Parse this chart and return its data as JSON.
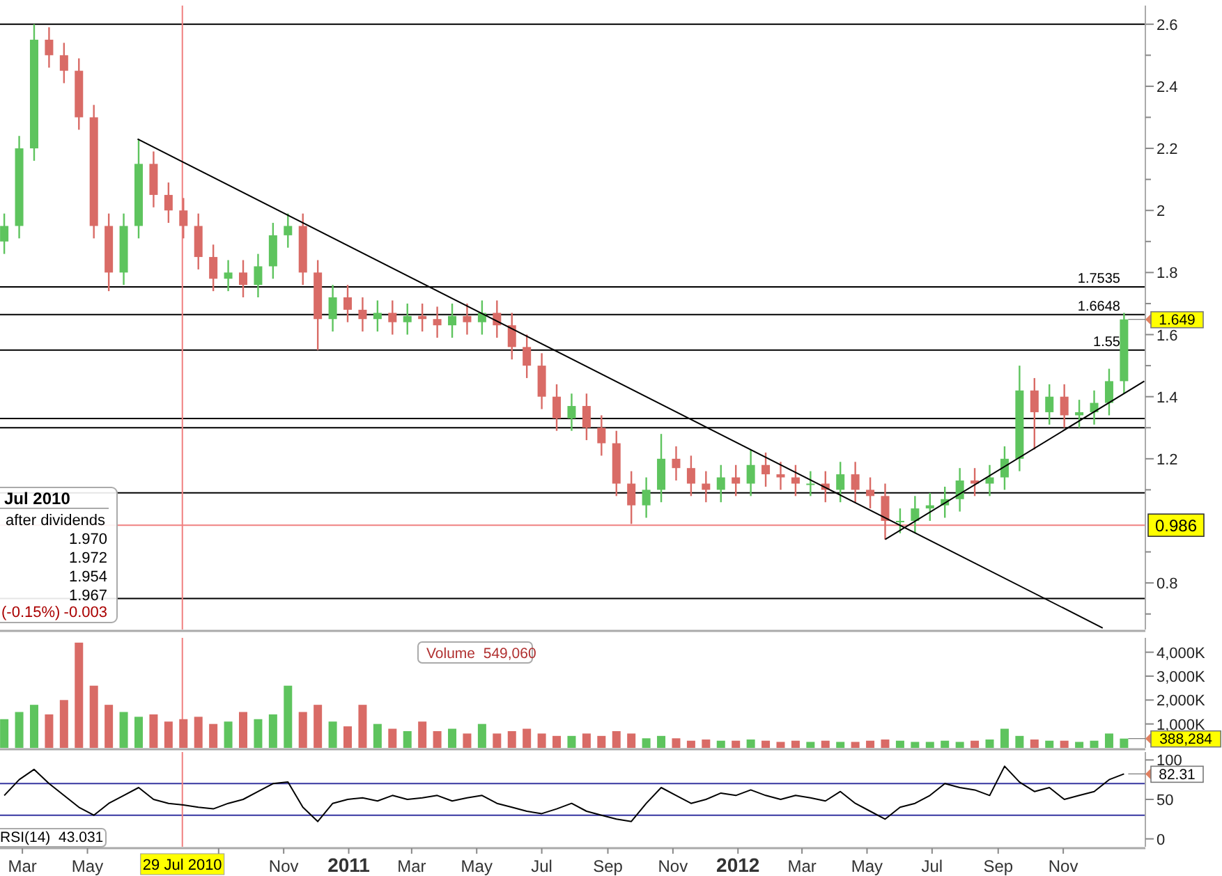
{
  "chart_data": [
    {
      "type": "candlestick",
      "xlim": [
        "2010-02-08",
        "2013-01-17"
      ],
      "ylim": [
        0.65,
        2.66
      ],
      "tick_labels": "y",
      "yticks": [
        2.6,
        {
          "value": 2.5,
          "label": null
        },
        2.4,
        {
          "value": 2.3,
          "label": null
        },
        2.2,
        {
          "value": 2.1,
          "label": null
        },
        2,
        {
          "value": 1.9,
          "label": null
        },
        1.8,
        {
          "value": 1.7,
          "label": null
        },
        1.6,
        {
          "value": 1.5,
          "label": null
        },
        1.4,
        {
          "value": 1.3,
          "label": null
        },
        1.2,
        {
          "value": 1.1,
          "label": null
        },
        {
          "value": 0.9,
          "label": null
        },
        0.8,
        {
          "value": 0.7,
          "label": null
        }
      ],
      "x": [
        "2010-02-12",
        "2010-02-26",
        "2010-03-12",
        "2010-03-26",
        "2010-04-09",
        "2010-04-23",
        "2010-05-07",
        "2010-05-21",
        "2010-06-04",
        "2010-06-18",
        "2010-07-02",
        "2010-07-16",
        "2010-07-30",
        "2010-08-13",
        "2010-08-27",
        "2010-09-10",
        "2010-09-24",
        "2010-10-08",
        "2010-10-22",
        "2010-11-05",
        "2010-11-19",
        "2010-12-03",
        "2010-12-17",
        "2010-12-31",
        "2011-01-14",
        "2011-01-28",
        "2011-02-11",
        "2011-02-25",
        "2011-03-11",
        "2011-03-25",
        "2011-04-08",
        "2011-04-22",
        "2011-05-06",
        "2011-05-20",
        "2011-06-03",
        "2011-06-17",
        "2011-07-01",
        "2011-07-15",
        "2011-07-29",
        "2011-08-12",
        "2011-08-26",
        "2011-09-09",
        "2011-09-23",
        "2011-10-07",
        "2011-10-21",
        "2011-11-04",
        "2011-11-18",
        "2011-12-02",
        "2011-12-16",
        "2011-12-30",
        "2012-01-13",
        "2012-01-27",
        "2012-02-10",
        "2012-02-24",
        "2012-03-09",
        "2012-03-23",
        "2012-04-06",
        "2012-04-20",
        "2012-05-04",
        "2012-05-18",
        "2012-06-01",
        "2012-06-15",
        "2012-06-29",
        "2012-07-13",
        "2012-07-27",
        "2012-08-10",
        "2012-08-24",
        "2012-09-07",
        "2012-09-21",
        "2012-10-05",
        "2012-10-19",
        "2012-11-02",
        "2012-11-16",
        "2012-11-30",
        "2012-12-14",
        "2012-12-28"
      ],
      "ohlc": [
        [
          1.9,
          1.99,
          1.86,
          1.95
        ],
        [
          1.95,
          2.24,
          1.91,
          2.2
        ],
        [
          2.2,
          2.6,
          2.16,
          2.55
        ],
        [
          2.55,
          2.59,
          2.46,
          2.5
        ],
        [
          2.5,
          2.54,
          2.41,
          2.45
        ],
        [
          2.45,
          2.49,
          2.26,
          2.3
        ],
        [
          2.3,
          2.34,
          1.91,
          1.95
        ],
        [
          1.95,
          1.99,
          1.74,
          1.8
        ],
        [
          1.8,
          1.99,
          1.76,
          1.95
        ],
        [
          1.95,
          2.23,
          1.91,
          2.15
        ],
        [
          2.15,
          2.19,
          2.01,
          2.05
        ],
        [
          2.05,
          2.09,
          1.96,
          2.0
        ],
        [
          2.0,
          2.04,
          1.91,
          1.95
        ],
        [
          1.95,
          1.99,
          1.81,
          1.85
        ],
        [
          1.85,
          1.89,
          1.74,
          1.78
        ],
        [
          1.78,
          1.84,
          1.74,
          1.8
        ],
        [
          1.8,
          1.84,
          1.72,
          1.76
        ],
        [
          1.76,
          1.86,
          1.72,
          1.82
        ],
        [
          1.82,
          1.96,
          1.78,
          1.92
        ],
        [
          1.92,
          1.99,
          1.88,
          1.95
        ],
        [
          1.95,
          1.99,
          1.76,
          1.8
        ],
        [
          1.8,
          1.84,
          1.55,
          1.65
        ],
        [
          1.65,
          1.76,
          1.61,
          1.72
        ],
        [
          1.72,
          1.76,
          1.64,
          1.68
        ],
        [
          1.68,
          1.72,
          1.61,
          1.65
        ],
        [
          1.65,
          1.71,
          1.61,
          1.67
        ],
        [
          1.67,
          1.71,
          1.6,
          1.64
        ],
        [
          1.64,
          1.7,
          1.6,
          1.66
        ],
        [
          1.66,
          1.7,
          1.61,
          1.65
        ],
        [
          1.65,
          1.69,
          1.59,
          1.63
        ],
        [
          1.63,
          1.7,
          1.59,
          1.66
        ],
        [
          1.66,
          1.7,
          1.6,
          1.64
        ],
        [
          1.64,
          1.71,
          1.6,
          1.67
        ],
        [
          1.67,
          1.71,
          1.59,
          1.63
        ],
        [
          1.63,
          1.67,
          1.52,
          1.56
        ],
        [
          1.56,
          1.6,
          1.46,
          1.5
        ],
        [
          1.5,
          1.54,
          1.36,
          1.4
        ],
        [
          1.4,
          1.44,
          1.29,
          1.33
        ],
        [
          1.33,
          1.41,
          1.29,
          1.37
        ],
        [
          1.37,
          1.41,
          1.26,
          1.3
        ],
        [
          1.3,
          1.34,
          1.21,
          1.25
        ],
        [
          1.25,
          1.29,
          1.08,
          1.12
        ],
        [
          1.12,
          1.16,
          0.99,
          1.05
        ],
        [
          1.05,
          1.14,
          1.01,
          1.1
        ],
        [
          1.1,
          1.28,
          1.06,
          1.2
        ],
        [
          1.2,
          1.24,
          1.13,
          1.17
        ],
        [
          1.17,
          1.21,
          1.08,
          1.12
        ],
        [
          1.12,
          1.16,
          1.06,
          1.1
        ],
        [
          1.1,
          1.18,
          1.06,
          1.14
        ],
        [
          1.14,
          1.18,
          1.08,
          1.12
        ],
        [
          1.12,
          1.23,
          1.08,
          1.18
        ],
        [
          1.18,
          1.22,
          1.11,
          1.15
        ],
        [
          1.15,
          1.19,
          1.1,
          1.14
        ],
        [
          1.14,
          1.18,
          1.08,
          1.12
        ],
        [
          1.12,
          1.16,
          1.08,
          1.12
        ],
        [
          1.12,
          1.16,
          1.06,
          1.1
        ],
        [
          1.1,
          1.19,
          1.06,
          1.15
        ],
        [
          1.15,
          1.19,
          1.06,
          1.1
        ],
        [
          1.1,
          1.14,
          1.04,
          1.08
        ],
        [
          1.08,
          1.12,
          0.94,
          1.0
        ],
        [
          1.0,
          1.04,
          0.96,
          1.0
        ],
        [
          1.0,
          1.08,
          0.96,
          1.04
        ],
        [
          1.04,
          1.09,
          1.0,
          1.05
        ],
        [
          1.05,
          1.11,
          1.01,
          1.07
        ],
        [
          1.07,
          1.17,
          1.03,
          1.13
        ],
        [
          1.13,
          1.17,
          1.08,
          1.12
        ],
        [
          1.12,
          1.18,
          1.08,
          1.14
        ],
        [
          1.14,
          1.24,
          1.1,
          1.2
        ],
        [
          1.2,
          1.5,
          1.16,
          1.42
        ],
        [
          1.42,
          1.46,
          1.23,
          1.35
        ],
        [
          1.35,
          1.44,
          1.31,
          1.4
        ],
        [
          1.4,
          1.44,
          1.3,
          1.34
        ],
        [
          1.34,
          1.39,
          1.3,
          1.35
        ],
        [
          1.35,
          1.42,
          1.31,
          1.38
        ],
        [
          1.38,
          1.49,
          1.34,
          1.45
        ],
        [
          1.45,
          1.67,
          1.41,
          1.649
        ]
      ],
      "colors": [
        "#5ec45e",
        "#5ec45e",
        "#5ec45e",
        "#d96b66",
        "#d96b66",
        "#d96b66",
        "#d96b66",
        "#d96b66",
        "#5ec45e",
        "#5ec45e",
        "#d96b66",
        "#d96b66",
        "#d96b66",
        "#d96b66",
        "#d96b66",
        "#5ec45e",
        "#d96b66",
        "#5ec45e",
        "#5ec45e",
        "#5ec45e",
        "#d96b66",
        "#d96b66",
        "#5ec45e",
        "#d96b66",
        "#d96b66",
        "#5ec45e",
        "#d96b66",
        "#5ec45e",
        "#d96b66",
        "#d96b66",
        "#5ec45e",
        "#d96b66",
        "#5ec45e",
        "#d96b66",
        "#d96b66",
        "#d96b66",
        "#d96b66",
        "#d96b66",
        "#5ec45e",
        "#d96b66",
        "#d96b66",
        "#d96b66",
        "#d96b66",
        "#5ec45e",
        "#5ec45e",
        "#d96b66",
        "#d96b66",
        "#d96b66",
        "#5ec45e",
        "#d96b66",
        "#5ec45e",
        "#d96b66",
        "#d96b66",
        "#d96b66",
        "#5ec45e",
        "#d96b66",
        "#5ec45e",
        "#d96b66",
        "#d96b66",
        "#d96b66",
        "#5ec45e",
        "#5ec45e",
        "#5ec45e",
        "#5ec45e",
        "#5ec45e",
        "#d96b66",
        "#5ec45e",
        "#5ec45e",
        "#5ec45e",
        "#d96b66",
        "#5ec45e",
        "#d96b66",
        "#5ec45e",
        "#5ec45e",
        "#5ec45e",
        "#5ec45e"
      ],
      "series": [
        {
          "type": "line",
          "color": "#000000",
          "x": [
            "2010-06-17",
            "2012-12-08"
          ],
          "values": [
            2.23,
            0.655
          ]
        },
        {
          "type": "line",
          "color": "#000000",
          "x": [
            "2012-05-18",
            "2013-01-16"
          ],
          "values": [
            0.94,
            1.45
          ]
        }
      ],
      "ref_lines": [
        {
          "axis": "y",
          "value": 2.6,
          "color": "#000000"
        },
        {
          "axis": "y",
          "value": 1.7535,
          "label": "1.7535",
          "color": "#000000"
        },
        {
          "axis": "y",
          "value": 1.6648,
          "label": "1.6648",
          "color": "#000000"
        },
        {
          "axis": "y",
          "value": 1.55,
          "label": "1.55",
          "color": "#000000"
        },
        {
          "axis": "y",
          "value": 1.33,
          "color": "#000000"
        },
        {
          "axis": "y",
          "value": 1.3,
          "color": "#000000"
        },
        {
          "axis": "y",
          "value": 1.09,
          "color": "#000000"
        },
        {
          "axis": "y",
          "value": 0.986,
          "label": "0.986",
          "color": "#f08080"
        },
        {
          "axis": "y",
          "value": 0.75,
          "color": "#000000"
        },
        {
          "axis": "x",
          "value": "2010-07-29",
          "color": "#f08080"
        }
      ],
      "annotations": [
        "Jul 2010",
        "after dividends",
        "1.970",
        "1.972",
        "1.954",
        "1.967",
        "(-0.15%)",
        "-0.003",
        {
          "text": "1.649",
          "x": "2012-12-28",
          "y": 1.649
        }
      ]
    },
    {
      "type": "bar",
      "xlim": [
        "2010-02-08",
        "2013-01-17"
      ],
      "ylim": [
        0,
        4600000
      ],
      "tick_labels": "y",
      "yticks": [
        {
          "value": 4000000,
          "label": "4,000K"
        },
        {
          "value": 3000000,
          "label": "3,000K"
        },
        {
          "value": 2000000,
          "label": "2,000K"
        },
        {
          "value": 1000000,
          "label": "1,000K"
        }
      ],
      "x": [
        "2010-02-12",
        "2010-02-26",
        "2010-03-12",
        "2010-03-26",
        "2010-04-09",
        "2010-04-23",
        "2010-05-07",
        "2010-05-21",
        "2010-06-04",
        "2010-06-18",
        "2010-07-02",
        "2010-07-16",
        "2010-07-30",
        "2010-08-13",
        "2010-08-27",
        "2010-09-10",
        "2010-09-24",
        "2010-10-08",
        "2010-10-22",
        "2010-11-05",
        "2010-11-19",
        "2010-12-03",
        "2010-12-17",
        "2010-12-31",
        "2011-01-14",
        "2011-01-28",
        "2011-02-11",
        "2011-02-25",
        "2011-03-11",
        "2011-03-25",
        "2011-04-08",
        "2011-04-22",
        "2011-05-06",
        "2011-05-20",
        "2011-06-03",
        "2011-06-17",
        "2011-07-01",
        "2011-07-15",
        "2011-07-29",
        "2011-08-12",
        "2011-08-26",
        "2011-09-09",
        "2011-09-23",
        "2011-10-07",
        "2011-10-21",
        "2011-11-04",
        "2011-11-18",
        "2011-12-02",
        "2011-12-16",
        "2011-12-30",
        "2012-01-13",
        "2012-01-27",
        "2012-02-10",
        "2012-02-24",
        "2012-03-09",
        "2012-03-23",
        "2012-04-06",
        "2012-04-20",
        "2012-05-04",
        "2012-05-18",
        "2012-06-01",
        "2012-06-15",
        "2012-06-29",
        "2012-07-13",
        "2012-07-27",
        "2012-08-10",
        "2012-08-24",
        "2012-09-07",
        "2012-09-21",
        "2012-10-05",
        "2012-10-19",
        "2012-11-02",
        "2012-11-16",
        "2012-11-30",
        "2012-12-14",
        "2012-12-28"
      ],
      "values": [
        1200000,
        1500000,
        1800000,
        1400000,
        2000000,
        4400000,
        2600000,
        1800000,
        1500000,
        1300000,
        1400000,
        1100000,
        1200000,
        1300000,
        1000000,
        1100000,
        1500000,
        1200000,
        1400000,
        2600000,
        1500000,
        1800000,
        1100000,
        900000,
        1800000,
        1000000,
        800000,
        700000,
        1100000,
        700000,
        800000,
        600000,
        1000000,
        600000,
        700000,
        800000,
        600000,
        500000,
        500000,
        600000,
        500000,
        700000,
        600000,
        400000,
        500000,
        400000,
        300000,
        350000,
        300000,
        300000,
        350000,
        300000,
        250000,
        300000,
        250000,
        300000,
        250000,
        250000,
        300000,
        350000,
        300000,
        250000,
        250000,
        300000,
        250000,
        300000,
        350000,
        800000,
        500000,
        350000,
        300000,
        300000,
        250000,
        300000,
        600000,
        388284
      ],
      "colors": [
        "#5ec45e",
        "#5ec45e",
        "#5ec45e",
        "#d96b66",
        "#d96b66",
        "#d96b66",
        "#d96b66",
        "#d96b66",
        "#5ec45e",
        "#5ec45e",
        "#d96b66",
        "#d96b66",
        "#d96b66",
        "#d96b66",
        "#d96b66",
        "#5ec45e",
        "#d96b66",
        "#5ec45e",
        "#5ec45e",
        "#5ec45e",
        "#d96b66",
        "#d96b66",
        "#5ec45e",
        "#d96b66",
        "#d96b66",
        "#5ec45e",
        "#d96b66",
        "#5ec45e",
        "#d96b66",
        "#d96b66",
        "#5ec45e",
        "#d96b66",
        "#5ec45e",
        "#d96b66",
        "#d96b66",
        "#d96b66",
        "#d96b66",
        "#d96b66",
        "#5ec45e",
        "#d96b66",
        "#d96b66",
        "#d96b66",
        "#d96b66",
        "#5ec45e",
        "#5ec45e",
        "#d96b66",
        "#d96b66",
        "#d96b66",
        "#5ec45e",
        "#d96b66",
        "#5ec45e",
        "#d96b66",
        "#d96b66",
        "#d96b66",
        "#5ec45e",
        "#d96b66",
        "#5ec45e",
        "#d96b66",
        "#d96b66",
        "#d96b66",
        "#5ec45e",
        "#5ec45e",
        "#5ec45e",
        "#5ec45e",
        "#5ec45e",
        "#d96b66",
        "#5ec45e",
        "#5ec45e",
        "#5ec45e",
        "#d96b66",
        "#5ec45e",
        "#d96b66",
        "#5ec45e",
        "#5ec45e",
        "#5ec45e",
        "#5ec45e"
      ],
      "ref_lines": [
        {
          "axis": "x",
          "value": "2010-07-29",
          "color": "#f08080"
        }
      ],
      "annotations": [
        "Volume  549,060",
        {
          "text": "388,284",
          "x": "2012-12-28",
          "y": 388284
        }
      ]
    },
    {
      "type": "line",
      "xlim": [
        "2010-02-08",
        "2013-01-17"
      ],
      "ylim": [
        -10,
        110
      ],
      "yticks": [
        100,
        50,
        0
      ],
      "xticks": [
        {
          "value": "2010-03-01",
          "label": "Mar"
        },
        {
          "value": "2010-05-01",
          "label": "May"
        },
        {
          "value": "2010-09-01",
          "label": null
        },
        {
          "value": "2010-11-01",
          "label": "Nov"
        },
        {
          "value": "2011-01-01",
          "label": "2011"
        },
        {
          "value": "2011-03-01",
          "label": "Mar"
        },
        {
          "value": "2011-05-01",
          "label": "May"
        },
        {
          "value": "2011-07-01",
          "label": "Jul"
        },
        {
          "value": "2011-09-01",
          "label": "Sep"
        },
        {
          "value": "2011-11-01",
          "label": "Nov"
        },
        {
          "value": "2012-01-01",
          "label": "2012"
        },
        {
          "value": "2012-03-01",
          "label": "Mar"
        },
        {
          "value": "2012-05-01",
          "label": "May"
        },
        {
          "value": "2012-07-01",
          "label": "Jul"
        },
        {
          "value": "2012-09-01",
          "label": "Sep"
        },
        {
          "value": "2012-11-01",
          "label": "Nov"
        }
      ],
      "series": [
        {
          "color": "#000000",
          "x": [
            "2010-02-12",
            "2010-02-26",
            "2010-03-12",
            "2010-03-26",
            "2010-04-09",
            "2010-04-23",
            "2010-05-07",
            "2010-05-21",
            "2010-06-04",
            "2010-06-18",
            "2010-07-02",
            "2010-07-16",
            "2010-07-30",
            "2010-08-13",
            "2010-08-27",
            "2010-09-10",
            "2010-09-24",
            "2010-10-08",
            "2010-10-22",
            "2010-11-05",
            "2010-11-19",
            "2010-12-03",
            "2010-12-17",
            "2010-12-31",
            "2011-01-14",
            "2011-01-28",
            "2011-02-11",
            "2011-02-25",
            "2011-03-11",
            "2011-03-25",
            "2011-04-08",
            "2011-04-22",
            "2011-05-06",
            "2011-05-20",
            "2011-06-03",
            "2011-06-17",
            "2011-07-01",
            "2011-07-15",
            "2011-07-29",
            "2011-08-12",
            "2011-08-26",
            "2011-09-09",
            "2011-09-23",
            "2011-10-07",
            "2011-10-21",
            "2011-11-04",
            "2011-11-18",
            "2011-12-02",
            "2011-12-16",
            "2011-12-30",
            "2012-01-13",
            "2012-01-27",
            "2012-02-10",
            "2012-02-24",
            "2012-03-09",
            "2012-03-23",
            "2012-04-06",
            "2012-04-20",
            "2012-05-04",
            "2012-05-18",
            "2012-06-01",
            "2012-06-15",
            "2012-06-29",
            "2012-07-13",
            "2012-07-27",
            "2012-08-10",
            "2012-08-24",
            "2012-09-07",
            "2012-09-21",
            "2012-10-05",
            "2012-10-19",
            "2012-11-02",
            "2012-11-16",
            "2012-11-30",
            "2012-12-14",
            "2012-12-28"
          ],
          "values": [
            55,
            75,
            88,
            70,
            55,
            40,
            30,
            45,
            55,
            65,
            50,
            45,
            43,
            40,
            38,
            45,
            50,
            60,
            70,
            72,
            40,
            22,
            45,
            50,
            52,
            48,
            55,
            50,
            52,
            55,
            48,
            52,
            55,
            45,
            40,
            35,
            32,
            38,
            45,
            35,
            30,
            25,
            22,
            45,
            65,
            55,
            45,
            50,
            58,
            55,
            62,
            55,
            50,
            55,
            52,
            48,
            60,
            45,
            35,
            25,
            40,
            45,
            55,
            70,
            65,
            62,
            55,
            92,
            72,
            60,
            65,
            50,
            55,
            60,
            75,
            82.31
          ]
        }
      ],
      "ref_lines": [
        {
          "axis": "y",
          "value": 70,
          "color": "#3535a0"
        },
        {
          "axis": "y",
          "value": 30,
          "color": "#3535a0"
        },
        {
          "axis": "x",
          "value": "2010-07-29",
          "label": "29 Jul 2010",
          "color": "#f08080"
        }
      ],
      "annotations": [
        "RSI(14)  43.031",
        {
          "text": "82.31",
          "x": "2012-12-28",
          "y": 82.31
        }
      ]
    }
  ]
}
